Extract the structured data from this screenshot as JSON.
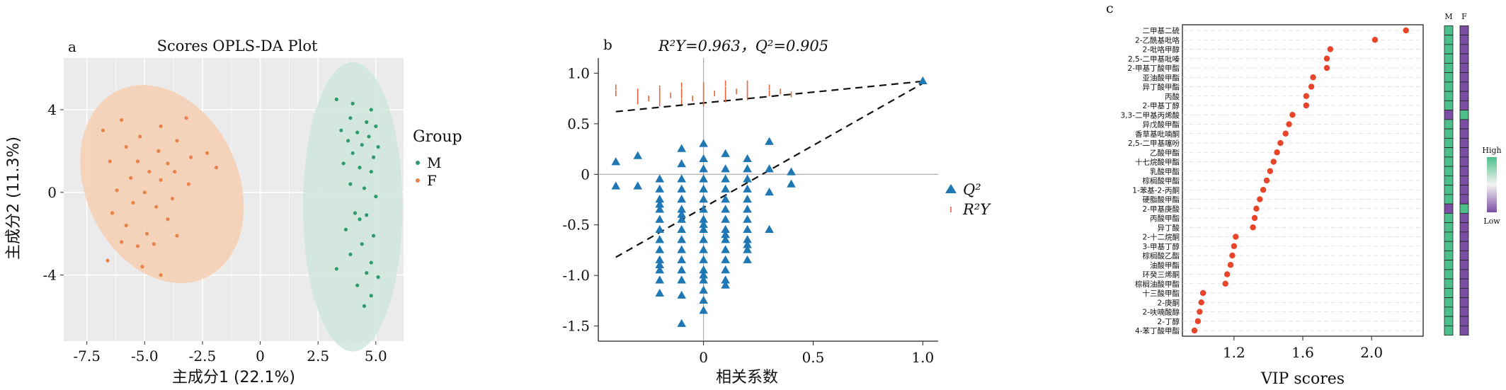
{
  "chart_data": [
    {
      "panel": "a",
      "type": "scatter",
      "title": "Scores OPLS-DA Plot",
      "xlabel": "主成分1 (22.1%)",
      "ylabel": "主成分2 (11.3%)",
      "xlim": [
        -8.5,
        6.2
      ],
      "ylim": [
        -7.2,
        6.5
      ],
      "xticks": [
        "-7.5",
        "-5.0",
        "-2.5",
        "0",
        "2.5",
        "5.0"
      ],
      "xtick_values": [
        -7.5,
        -5.0,
        -2.5,
        0,
        2.5,
        5.0
      ],
      "yticks": [
        "4",
        "0",
        "-4"
      ],
      "ytick_values": [
        4,
        0,
        -4
      ],
      "grid": true,
      "legend_title": "Group",
      "legend_position": "right",
      "series": [
        {
          "name": "M",
          "color": "#2e9a6e",
          "ellipse": {
            "cx": 4.0,
            "cy": -0.7,
            "rx": 2.15,
            "ry": 7.0,
            "color": "#cfe6dc"
          },
          "points": [
            [
              3.3,
              4.5
            ],
            [
              4.0,
              4.3
            ],
            [
              4.8,
              4.0
            ],
            [
              3.9,
              3.6
            ],
            [
              4.6,
              3.4
            ],
            [
              5.0,
              3.2
            ],
            [
              3.5,
              3.0
            ],
            [
              4.2,
              2.9
            ],
            [
              4.7,
              2.7
            ],
            [
              3.8,
              2.5
            ],
            [
              4.4,
              2.3
            ],
            [
              5.1,
              2.2
            ],
            [
              4.0,
              1.9
            ],
            [
              4.9,
              1.7
            ],
            [
              3.6,
              1.4
            ],
            [
              4.3,
              1.2
            ],
            [
              4.8,
              1.0
            ],
            [
              3.9,
              0.4
            ],
            [
              4.5,
              0.2
            ],
            [
              5.0,
              -0.2
            ],
            [
              4.1,
              -1.0
            ],
            [
              4.6,
              -1.1
            ],
            [
              4.3,
              -1.3
            ],
            [
              3.7,
              -1.8
            ],
            [
              4.9,
              -2.1
            ],
            [
              4.4,
              -2.5
            ],
            [
              3.9,
              -3.0
            ],
            [
              4.8,
              -3.4
            ],
            [
              3.3,
              -3.7
            ],
            [
              4.6,
              -3.9
            ],
            [
              5.1,
              -4.1
            ],
            [
              4.2,
              -4.5
            ],
            [
              4.8,
              -5.0
            ],
            [
              4.5,
              -5.5
            ]
          ]
        },
        {
          "name": "F",
          "color": "#e8834a",
          "ellipse": {
            "cx": -4.25,
            "cy": 0.4,
            "rx": 3.3,
            "ry": 5.0,
            "rotate": -25,
            "color": "#f7cfb2"
          },
          "points": [
            [
              -3.2,
              3.6
            ],
            [
              -4.3,
              3.2
            ],
            [
              -6.0,
              3.5
            ],
            [
              -6.8,
              3.0
            ],
            [
              -5.2,
              2.7
            ],
            [
              -3.6,
              2.5
            ],
            [
              -5.8,
              2.2
            ],
            [
              -4.4,
              2.0
            ],
            [
              -2.3,
              1.9
            ],
            [
              -3.0,
              1.7
            ],
            [
              -6.5,
              1.5
            ],
            [
              -5.3,
              1.5
            ],
            [
              -4.0,
              1.4
            ],
            [
              -1.9,
              1.2
            ],
            [
              -4.8,
              1.0
            ],
            [
              -3.7,
              1.0
            ],
            [
              -5.6,
              0.7
            ],
            [
              -4.3,
              0.6
            ],
            [
              -3.1,
              0.4
            ],
            [
              -6.2,
              0.1
            ],
            [
              -5.0,
              0.0
            ],
            [
              -3.8,
              -0.3
            ],
            [
              -5.5,
              -0.5
            ],
            [
              -4.5,
              -0.7
            ],
            [
              -6.4,
              -1.0
            ],
            [
              -4.0,
              -1.3
            ],
            [
              -5.8,
              -1.6
            ],
            [
              -4.9,
              -2.0
            ],
            [
              -3.6,
              -2.1
            ],
            [
              -6.0,
              -2.4
            ],
            [
              -4.6,
              -2.5
            ],
            [
              -5.3,
              -2.6
            ],
            [
              -6.6,
              -3.3
            ],
            [
              -5.1,
              -3.6
            ],
            [
              -4.3,
              -4.0
            ]
          ]
        }
      ]
    },
    {
      "panel": "b",
      "type": "scatter",
      "title": "R²Y=0.963，Q²=0.905",
      "xlabel": "相关系数",
      "ylabel": "",
      "xlim": [
        -0.48,
        1.07
      ],
      "ylim": [
        -1.65,
        1.15
      ],
      "xticks": [
        "0",
        "0.5",
        "1.0"
      ],
      "xtick_values": [
        0,
        0.5,
        1.0
      ],
      "yticks": [
        "1.0",
        "0.5",
        "0",
        "-0.5",
        "-1.0",
        "-1.5"
      ],
      "ytick_values": [
        1.0,
        0.5,
        0,
        -0.5,
        -1.0,
        -1.5
      ],
      "grid": false,
      "legend_position": "right",
      "reference_lines": {
        "y": 0,
        "x": 0
      },
      "trend_lines": [
        {
          "series": "R2Y",
          "from": [
            -0.4,
            0.62
          ],
          "to": [
            1.0,
            0.92
          ]
        },
        {
          "series": "Q2",
          "from": [
            -0.4,
            -0.82
          ],
          "to": [
            1.0,
            0.9
          ]
        }
      ],
      "series": [
        {
          "name": "Q2",
          "legend_label": "Q²",
          "marker": "triangle",
          "color": "#1f77b4",
          "x": [
            -0.4,
            -0.4,
            -0.3,
            -0.3,
            -0.2,
            -0.2,
            -0.2,
            -0.2,
            -0.2,
            -0.2,
            -0.2,
            -0.2,
            -0.2,
            -0.2,
            -0.2,
            -0.2,
            -0.1,
            -0.1,
            -0.1,
            -0.1,
            -0.1,
            -0.1,
            -0.1,
            -0.1,
            -0.1,
            -0.1,
            -0.1,
            -0.1,
            -0.1,
            -0.1,
            -0.1,
            0,
            0,
            0,
            0,
            0,
            0,
            0,
            0,
            0,
            0,
            0,
            0,
            0,
            0,
            0,
            0,
            0,
            0.1,
            0.1,
            0.1,
            0.1,
            0.1,
            0.1,
            0.1,
            0.1,
            0.1,
            0.1,
            0.1,
            0.1,
            0.1,
            0.2,
            0.2,
            0.2,
            0.2,
            0.2,
            0.2,
            0.2,
            0.2,
            0.2,
            0.2,
            0.2,
            0.3,
            0.3,
            0.3,
            0.3,
            0.4,
            0.4,
            -0.2,
            -0.1,
            0,
            0.1,
            0.2,
            -0.2,
            0,
            0.1,
            1.0
          ],
          "y": [
            0.12,
            -0.12,
            0.18,
            -0.12,
            -0.05,
            -0.15,
            -0.25,
            -0.35,
            -0.45,
            -0.55,
            -0.65,
            -0.75,
            -0.85,
            -0.95,
            -1.05,
            -1.18,
            0.25,
            0.1,
            -0.05,
            -0.15,
            -0.25,
            -0.35,
            -0.45,
            -0.55,
            -0.65,
            -0.75,
            -0.85,
            -0.95,
            -1.05,
            -1.2,
            -1.48,
            0.3,
            0.15,
            0.05,
            -0.05,
            -0.15,
            -0.25,
            -0.35,
            -0.45,
            -0.55,
            -0.65,
            -0.75,
            -0.85,
            -0.95,
            -1.05,
            -1.15,
            -1.25,
            -1.35,
            0.2,
            0.05,
            -0.05,
            -0.15,
            -0.25,
            -0.35,
            -0.45,
            -0.55,
            -0.65,
            -0.75,
            -0.85,
            -0.95,
            -1.05,
            0.15,
            0.05,
            -0.05,
            -0.15,
            -0.25,
            -0.35,
            -0.45,
            -0.55,
            -0.65,
            -0.75,
            -0.85,
            0.32,
            0.05,
            -0.18,
            -0.55,
            0.02,
            -0.1,
            -0.3,
            -0.4,
            -0.5,
            -0.6,
            -0.7,
            -0.9,
            -1.0,
            -1.1,
            0.92
          ]
        },
        {
          "name": "R2Y",
          "legend_label": "R²Y",
          "marker": "dash",
          "color": "#e8663c",
          "x": [
            -0.4,
            -0.4,
            -0.3,
            -0.3,
            -0.3,
            -0.25,
            -0.2,
            -0.2,
            -0.2,
            -0.2,
            -0.15,
            -0.1,
            -0.1,
            -0.1,
            -0.1,
            -0.05,
            0,
            0,
            0,
            0,
            0,
            0.05,
            0.1,
            0.1,
            0.1,
            0.1,
            0.15,
            0.2,
            0.2,
            0.2,
            0.2,
            0.3,
            0.3,
            0.35,
            0.4
          ],
          "y": [
            0.86,
            0.8,
            0.82,
            0.77,
            0.72,
            0.75,
            0.85,
            0.8,
            0.75,
            0.7,
            0.78,
            0.88,
            0.82,
            0.78,
            0.72,
            0.75,
            0.88,
            0.83,
            0.78,
            0.74,
            0.7,
            0.8,
            0.9,
            0.84,
            0.79,
            0.74,
            0.82,
            0.9,
            0.85,
            0.8,
            0.76,
            0.86,
            0.8,
            0.82,
            0.79
          ]
        }
      ]
    },
    {
      "panel": "c",
      "type": "scatter",
      "title": "",
      "xlabel": "VIP scores",
      "ylabel": "",
      "xlim": [
        0.9,
        2.3
      ],
      "xticks": [
        "1.2",
        "1.6",
        "2.0"
      ],
      "xtick_values": [
        1.2,
        1.6,
        2.0
      ],
      "grid": true,
      "point_color": "#e8442a",
      "categories": [
        "二甲基二硫",
        "2-乙酰基吡咯",
        "2-吡咯甲醇",
        "2,5-二甲基吡嗪",
        "2-甲基丁酸甲酯",
        "亚油酸甲酯",
        "异丁酸甲酯",
        "丙酸",
        "2-甲基丁醇",
        "3,3-二甲基丙烯酸",
        "异戊酸甲酯",
        "香草基吡喃酮",
        "2,5-二甲基噻吩",
        "乙酸甲酯",
        "十七烷酸甲酯",
        "乳酸甲酯",
        "棕榈酸甲酯",
        "1-苯基-2-丙酮",
        "硬脂酸甲酯",
        "2-甲基庚酸",
        "丙酸甲酯",
        "异丁酸",
        "2-十二烷酮",
        "3-甲基丁醇",
        "棕榈酸乙酯",
        "油酸甲酯",
        "环癸三烯酮",
        "棕榈油酸甲酯",
        "十三酸甲酯",
        "2-庚酮",
        "2-呋喃酸醇",
        "2-丁醇",
        "4-苯丁酸甲酯"
      ],
      "values": [
        2.2,
        2.02,
        1.76,
        1.74,
        1.74,
        1.66,
        1.65,
        1.62,
        1.62,
        1.54,
        1.52,
        1.5,
        1.47,
        1.45,
        1.43,
        1.41,
        1.39,
        1.37,
        1.35,
        1.33,
        1.32,
        1.31,
        1.21,
        1.2,
        1.19,
        1.18,
        1.16,
        1.15,
        1.02,
        1.01,
        1.0,
        0.99,
        0.97
      ],
      "heatmap": {
        "columns": [
          "M",
          "F"
        ],
        "legend_high": "High",
        "legend_low": "Low",
        "high_color": "#4dbf8a",
        "low_color": "#7b4ea3",
        "column_M": [
          1,
          1,
          1,
          1,
          1,
          1,
          1,
          1,
          1,
          0,
          1,
          1,
          1,
          1,
          1,
          1,
          1,
          1,
          1,
          0,
          1,
          1,
          1,
          1,
          1,
          1,
          1,
          1,
          1,
          1,
          1,
          1,
          1
        ],
        "column_F": [
          0,
          0,
          0,
          0,
          0,
          0,
          0,
          0,
          0,
          1,
          0,
          0,
          0,
          0,
          0,
          0,
          0,
          0,
          0,
          1,
          0,
          0,
          0,
          0,
          0,
          0,
          0,
          0,
          0,
          0,
          0,
          0,
          0
        ]
      }
    }
  ]
}
